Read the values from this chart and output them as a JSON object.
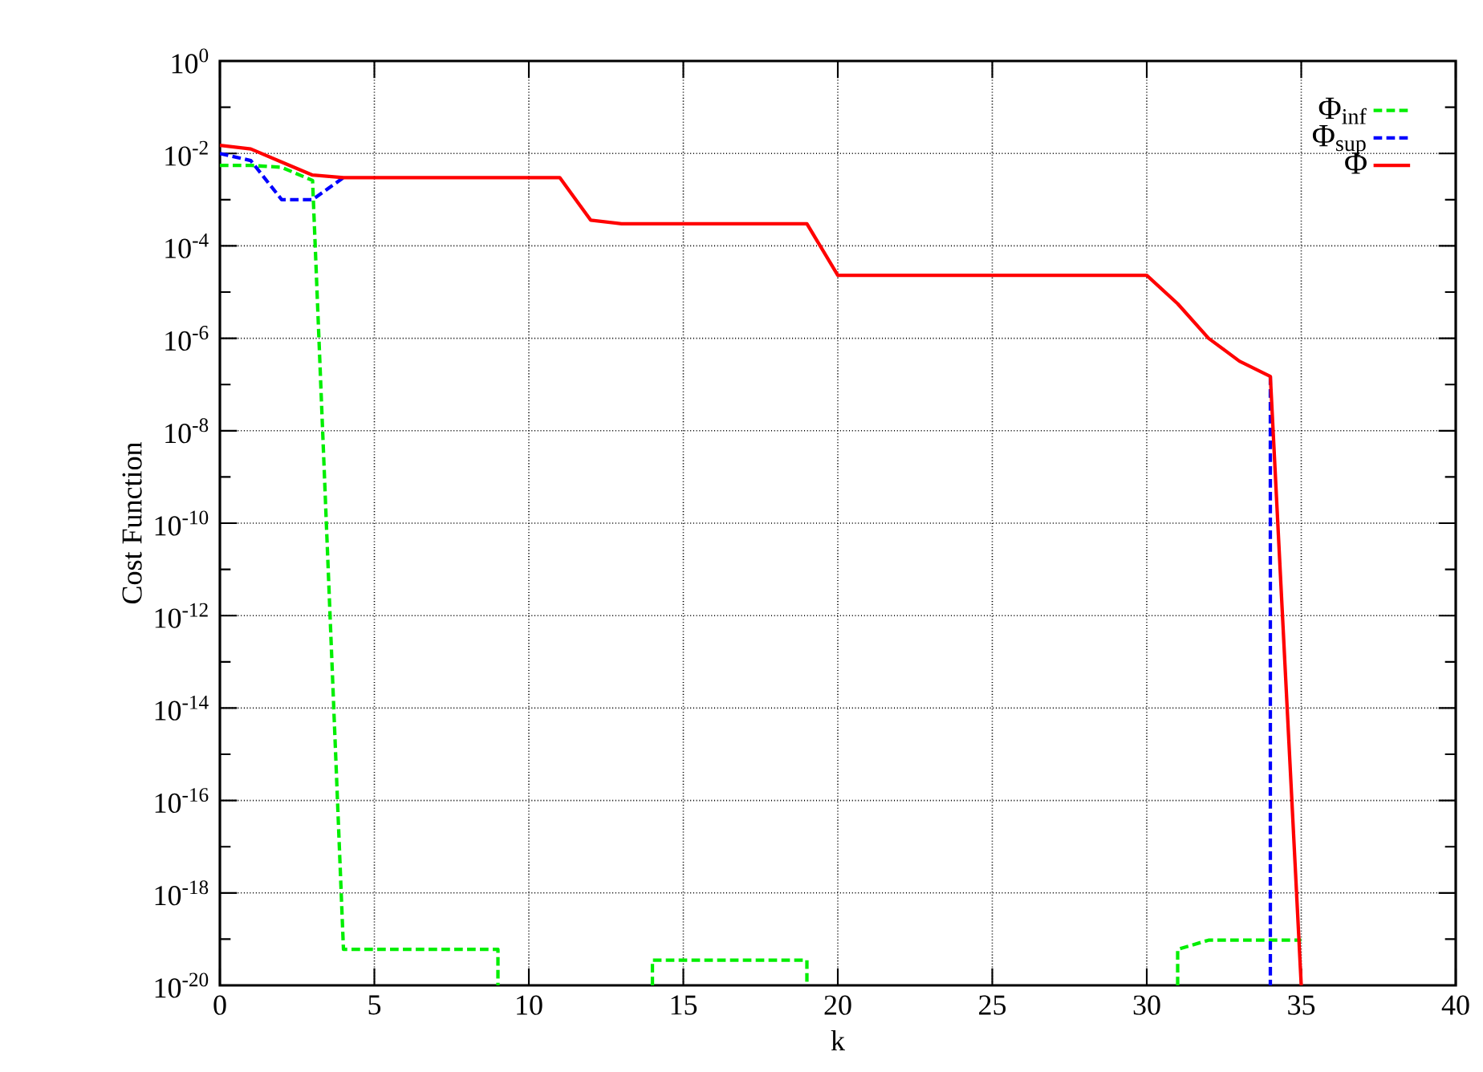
{
  "chart_data": {
    "type": "line",
    "xlabel": "k",
    "ylabel": "Cost Function",
    "xlim": [
      0,
      40
    ],
    "xticks": [
      0,
      5,
      10,
      15,
      20,
      25,
      30,
      35,
      40
    ],
    "ylim": [
      1e-20,
      1
    ],
    "log": "y",
    "grid": true,
    "legend": "top right",
    "yticks": [
      {
        "value": 1,
        "label": "10$^{0}$"
      },
      {
        "value": 0.1,
        "label": null
      },
      {
        "value": 0.01,
        "label": "10$^{-2}$"
      },
      {
        "value": 0.001,
        "label": null
      },
      {
        "value": 0.0001,
        "label": "10$^{-4}$"
      },
      {
        "value": 1e-05,
        "label": null
      },
      {
        "value": 1e-06,
        "label": "10$^{-6}$"
      },
      {
        "value": 1e-07,
        "label": null
      },
      {
        "value": 1e-08,
        "label": "10$^{-8}$"
      },
      {
        "value": 1e-09,
        "label": null
      },
      {
        "value": 1e-10,
        "label": "10$^{-10}$"
      },
      {
        "value": 1e-11,
        "label": null
      },
      {
        "value": 1e-12,
        "label": "10$^{-12}$"
      },
      {
        "value": 1e-13,
        "label": null
      },
      {
        "value": 1e-14,
        "label": "10$^{-14}$"
      },
      {
        "value": 1e-15,
        "label": null
      },
      {
        "value": 1e-16,
        "label": "10$^{-16}$"
      },
      {
        "value": 1e-17,
        "label": null
      },
      {
        "value": 1e-18,
        "label": "10$^{-18}$"
      },
      {
        "value": 1e-19,
        "label": null
      },
      {
        "value": 1e-20,
        "label": "10$^{-20}$"
      }
    ],
    "series": [
      {
        "name": "Φ$_{inf}$",
        "color": "#00ee00",
        "line_style": "dashed",
        "x": [
          0,
          1,
          2,
          3,
          4,
          5,
          6,
          7,
          8,
          9,
          9,
          10,
          14,
          14,
          15,
          16,
          17,
          18,
          19,
          19,
          20,
          31,
          31,
          32,
          33,
          34,
          35
        ],
        "values": [
          0.0055,
          0.0055,
          0.005,
          0.0026,
          6e-20,
          6e-20,
          6e-20,
          6e-20,
          6e-20,
          6e-20,
          1e-20,
          null,
          1e-20,
          3.5e-20,
          3.5e-20,
          3.5e-20,
          3.5e-20,
          3.5e-20,
          3.5e-20,
          1e-20,
          null,
          1e-20,
          6e-20,
          9.5e-20,
          9.5e-20,
          9.5e-20,
          9.5e-20
        ]
      },
      {
        "name": "Φ$_{sup}$",
        "color": "#0000ff",
        "line_style": "dashed",
        "x": [
          0,
          1,
          2,
          3,
          4,
          5,
          6,
          7,
          8,
          9,
          10,
          11,
          12,
          13,
          14,
          15,
          16,
          17,
          18,
          19,
          20,
          21,
          22,
          23,
          24,
          25,
          26,
          27,
          28,
          29,
          30,
          31,
          32,
          33,
          34,
          34
        ],
        "values": [
          0.01,
          0.007,
          0.001,
          0.001,
          0.003,
          null,
          null,
          null,
          null,
          null,
          null,
          null,
          null,
          null,
          null,
          null,
          null,
          null,
          null,
          null,
          null,
          null,
          null,
          null,
          null,
          null,
          null,
          null,
          null,
          null,
          null,
          null,
          null,
          null,
          1.5e-07,
          1e-20
        ]
      },
      {
        "name": "Φ",
        "color": "#ff0000",
        "line_style": "solid",
        "x": [
          0,
          1,
          2,
          3,
          4,
          5,
          6,
          7,
          8,
          9,
          10,
          11,
          12,
          13,
          14,
          15,
          16,
          17,
          18,
          19,
          20,
          21,
          22,
          23,
          24,
          25,
          26,
          27,
          28,
          29,
          30,
          31,
          32,
          33,
          34,
          35
        ],
        "values": [
          0.015,
          0.0125,
          0.0065,
          0.0034,
          0.003,
          0.003,
          0.003,
          0.003,
          0.003,
          0.003,
          0.003,
          0.003,
          0.00036,
          0.0003,
          0.0003,
          0.0003,
          0.0003,
          0.0003,
          0.0003,
          0.0003,
          2.3e-05,
          2.3e-05,
          2.3e-05,
          2.3e-05,
          2.3e-05,
          2.3e-05,
          2.3e-05,
          2.3e-05,
          2.3e-05,
          2.3e-05,
          2.3e-05,
          5.6e-06,
          1e-06,
          3.2e-07,
          1.5e-07,
          1e-20
        ]
      }
    ]
  }
}
